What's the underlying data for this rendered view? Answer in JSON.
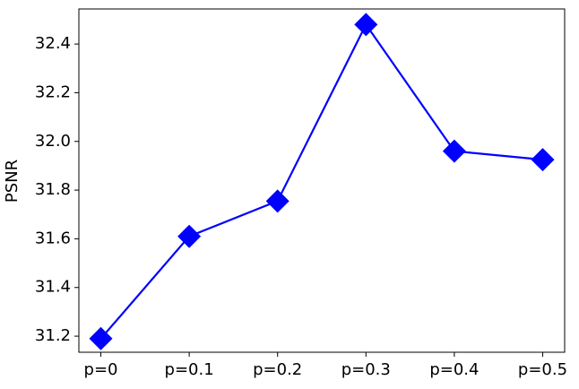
{
  "chart_data": {
    "type": "line",
    "y_label": "PSNR",
    "categories": [
      "p=0",
      "p=0.1",
      "p=0.2",
      "p=0.3",
      "p=0.4",
      "p=0.5"
    ],
    "series": [
      {
        "color": "#0000ff",
        "marker": "diamond",
        "values": [
          31.19,
          31.61,
          31.755,
          32.48,
          31.96,
          31.925
        ]
      }
    ],
    "ylim": [
      31.134,
      32.544
    ],
    "yticks": [
      31.2,
      31.4,
      31.6,
      31.8,
      {
        "value": 32,
        "label": "32.0"
      },
      32.2,
      32.4
    ]
  }
}
